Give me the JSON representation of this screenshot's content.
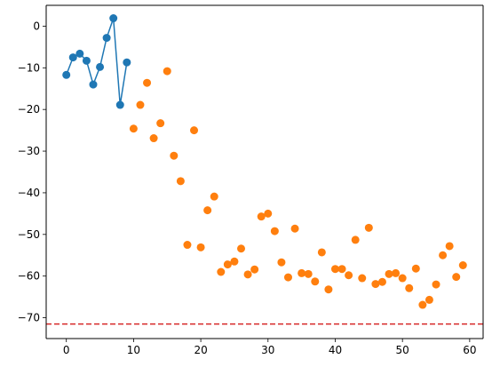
{
  "chart_data": {
    "type": "scatter",
    "title": "",
    "xlabel": "",
    "ylabel": "",
    "xlim": [
      -3,
      62
    ],
    "ylim": [
      -75,
      5
    ],
    "xticks": [
      0,
      10,
      20,
      30,
      40,
      50,
      60
    ],
    "yticks": [
      0,
      -10,
      -20,
      -30,
      -40,
      -50,
      -60,
      -70
    ],
    "grid": false,
    "series": [
      {
        "type": "line-with-markers",
        "color": "#1f77b4",
        "x": [
          0,
          1,
          2,
          3,
          4,
          5,
          6,
          7,
          8,
          9
        ],
        "y": [
          -11.7,
          -7.5,
          -6.6,
          -8.3,
          -14.0,
          -9.8,
          -2.8,
          1.9,
          -18.9,
          -8.7
        ]
      },
      {
        "type": "scatter",
        "color": "#ff7f0e",
        "x": [
          10,
          11,
          12,
          13,
          14,
          15,
          16,
          17,
          18,
          19,
          20,
          21,
          22,
          23,
          24,
          25,
          26,
          27,
          28,
          29,
          30,
          31,
          32,
          33,
          34,
          35,
          36,
          37,
          38,
          39,
          40,
          41,
          42,
          43,
          44,
          45,
          46,
          47,
          48,
          49,
          50,
          51,
          52,
          53,
          54,
          55,
          56,
          57,
          58,
          59
        ],
        "y": [
          -24.6,
          -18.9,
          -13.6,
          -26.9,
          -23.3,
          -10.8,
          -31.1,
          -37.2,
          -52.5,
          -25.0,
          -53.1,
          -44.2,
          -40.9,
          -59.0,
          -57.2,
          -56.5,
          -53.4,
          -59.6,
          -58.4,
          -45.7,
          -45.0,
          -49.2,
          -56.7,
          -60.3,
          -48.6,
          -59.3,
          -59.5,
          -61.3,
          -54.3,
          -63.2,
          -58.3,
          -58.3,
          -59.8,
          -51.3,
          -60.5,
          -48.4,
          -61.9,
          -61.4,
          -59.5,
          -59.3,
          -60.5,
          -62.9,
          -58.2,
          -66.9,
          -65.7,
          -62.0,
          -55.0,
          -52.8,
          -60.2,
          -57.4
        ]
      }
    ],
    "hline": {
      "y": -71.5,
      "color": "#d62728",
      "style": "dashed"
    }
  }
}
